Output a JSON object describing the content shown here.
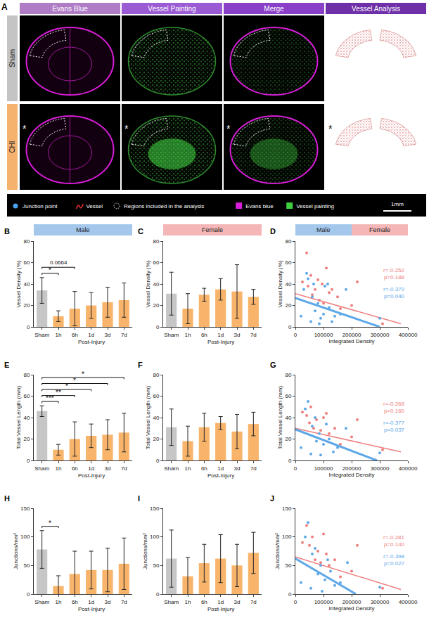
{
  "panel_a": {
    "label": "A",
    "columns": [
      {
        "text": "Evans Blue",
        "color": "#b07cc6"
      },
      {
        "text": "Vessel Painting",
        "color": "#9b5bd4"
      },
      {
        "text": "Merge",
        "color": "#8a3fc9"
      },
      {
        "text": "Vessel Analysis",
        "color": "#6f2fa8"
      }
    ],
    "rows": [
      {
        "label": "Sham",
        "color": "#c4c4c4"
      },
      {
        "label": "CHI",
        "color": "#f4b26e",
        "marker": "*"
      }
    ],
    "legend": [
      {
        "label": "Junction point",
        "marker": "dot",
        "color": "#4aa3f0"
      },
      {
        "label": "Vessel",
        "marker": "vessel",
        "color": "#e03030"
      },
      {
        "label": "Regions included in the analysis",
        "marker": "dotted_region",
        "color": "#ffffff"
      },
      {
        "label": "Evans blue",
        "marker": "square",
        "color": "#d81ed8"
      },
      {
        "label": "Vessel painting",
        "marker": "square",
        "color": "#3fcf3f"
      }
    ],
    "scale_bar": "1mm"
  },
  "chart_data": [
    {
      "panel": "B",
      "type": "bar",
      "header": {
        "text": "Male",
        "color": "#a4c8ec"
      },
      "y_title": "Vessel Density (%)",
      "categories": [
        "Sham",
        "1h",
        "6h",
        "1d",
        "3d",
        "7d"
      ],
      "group_label": "Post-Injury",
      "values": [
        34,
        10,
        17,
        20,
        23,
        25
      ],
      "errors": [
        12,
        5,
        16,
        12,
        14,
        16
      ],
      "colors": [
        "#c6c6c6",
        "#f7b46a",
        "#f7b46a",
        "#f7b46a",
        "#f7b46a",
        "#f7b46a"
      ],
      "ylim": [
        0,
        80
      ],
      "yticks": [
        0,
        20,
        40,
        60,
        80
      ],
      "grid": false,
      "comparisons": [
        {
          "from": "Sham",
          "to": "1h",
          "label": "*"
        },
        {
          "from": "Sham",
          "to": "6h",
          "label": "0.0664"
        }
      ]
    },
    {
      "panel": "C",
      "type": "bar",
      "header": {
        "text": "Female",
        "color": "#f4b6b6"
      },
      "y_title": "Vessel Density (%)",
      "categories": [
        "Sham",
        "1h",
        "6h",
        "1d",
        "3d",
        "7d"
      ],
      "group_label": "Post-Injury",
      "values": [
        31,
        17,
        30,
        35,
        33,
        28
      ],
      "errors": [
        20,
        14,
        6,
        10,
        25,
        7
      ],
      "colors": [
        "#c6c6c6",
        "#f7b46a",
        "#f7b46a",
        "#f7b46a",
        "#f7b46a",
        "#f7b46a"
      ],
      "ylim": [
        0,
        80
      ],
      "yticks": [
        0,
        20,
        40,
        60,
        80
      ],
      "grid": false,
      "comparisons": []
    },
    {
      "panel": "D",
      "type": "scatter",
      "header": [
        {
          "text": "Male",
          "color": "#a4c8ec"
        },
        {
          "text": "Female",
          "color": "#f4b6b6"
        }
      ],
      "x_title": "Integrated Density",
      "y_title": "Vessel Density (%)",
      "xlim": [
        0,
        400000
      ],
      "xticks": [
        0,
        100000,
        200000,
        300000,
        400000
      ],
      "ylim": [
        0,
        80
      ],
      "yticks": [
        0,
        20,
        40,
        60,
        80
      ],
      "grid": false,
      "series": [
        {
          "color": "#ee7f7f",
          "line_style": "solid",
          "stats": [
            "r=-0.252",
            "p=0.188"
          ],
          "x": [
            25000,
            40000,
            45000,
            55000,
            60000,
            70000,
            80000,
            85000,
            95000,
            100000,
            110000,
            120000,
            130000,
            150000,
            160000,
            200000,
            220000,
            310000
          ],
          "y": [
            42,
            69,
            38,
            48,
            30,
            35,
            44,
            25,
            40,
            22,
            55,
            32,
            35,
            28,
            17,
            20,
            42,
            3
          ],
          "fit": {
            "x": [
              0,
              375000
            ],
            "y": [
              31,
              3
            ]
          }
        },
        {
          "color": "#5fa8e8",
          "line_style": "bold",
          "stats": [
            "r=-0.370",
            "p=0.040"
          ],
          "x": [
            20000,
            30000,
            40000,
            45000,
            55000,
            60000,
            65000,
            70000,
            80000,
            85000,
            90000,
            100000,
            105000,
            115000,
            120000,
            130000,
            140000,
            160000,
            180000,
            300000
          ],
          "y": [
            10,
            35,
            50,
            45,
            5,
            28,
            40,
            15,
            22,
            3,
            8,
            12,
            38,
            40,
            18,
            5,
            10,
            12,
            35,
            8
          ],
          "fit": {
            "x": [
              0,
              300000
            ],
            "y": [
              27,
              0
            ]
          }
        }
      ]
    },
    {
      "panel": "E",
      "type": "bar",
      "y_title": "Total Vessel Length (mm)",
      "categories": [
        "Sham",
        "1h",
        "6h",
        "1d",
        "3d",
        "7d"
      ],
      "group_label": "Post-Injury",
      "values": [
        46,
        10,
        20,
        23,
        24,
        26
      ],
      "errors": [
        5,
        5,
        16,
        11,
        14,
        18
      ],
      "colors": [
        "#c6c6c6",
        "#f7b46a",
        "#f7b46a",
        "#f7b46a",
        "#f7b46a",
        "#f7b46a"
      ],
      "ylim": [
        0,
        80
      ],
      "yticks": [
        0,
        20,
        40,
        60,
        80
      ],
      "grid": false,
      "comparisons": [
        {
          "from": "Sham",
          "to": "1h",
          "label": "***"
        },
        {
          "from": "Sham",
          "to": "6h",
          "label": "**"
        },
        {
          "from": "Sham",
          "to": "1d",
          "label": "*"
        },
        {
          "from": "Sham",
          "to": "3d",
          "label": "*"
        },
        {
          "from": "Sham",
          "to": "7d",
          "label": "*"
        }
      ]
    },
    {
      "panel": "F",
      "type": "bar",
      "y_title": "Total Vessel Length (mm)",
      "categories": [
        "Sham",
        "1h",
        "6h",
        "1d",
        "3d",
        "7d"
      ],
      "group_label": "Post-Injury",
      "values": [
        31,
        18,
        31,
        35,
        27,
        34
      ],
      "errors": [
        17,
        14,
        13,
        6,
        16,
        11
      ],
      "colors": [
        "#c6c6c6",
        "#f7b46a",
        "#f7b46a",
        "#f7b46a",
        "#f7b46a",
        "#f7b46a"
      ],
      "ylim": [
        0,
        80
      ],
      "yticks": [
        0,
        20,
        40,
        60,
        80
      ],
      "grid": false,
      "comparisons": []
    },
    {
      "panel": "G",
      "type": "scatter",
      "x_title": "Integrated Density",
      "y_title": "Total Vessel Length (mm)",
      "xlim": [
        0,
        400000
      ],
      "xticks": [
        0,
        100000,
        200000,
        300000,
        400000
      ],
      "ylim": [
        0,
        80
      ],
      "yticks": [
        0,
        20,
        40,
        60,
        80
      ],
      "grid": false,
      "series": [
        {
          "color": "#ee7f7f",
          "line_style": "solid",
          "stats": [
            "r=-0.268",
            "p=0.160"
          ],
          "x": [
            25000,
            40000,
            50000,
            55000,
            65000,
            75000,
            90000,
            100000,
            110000,
            120000,
            140000,
            160000,
            200000,
            220000,
            310000
          ],
          "y": [
            45,
            42,
            35,
            50,
            30,
            38,
            28,
            40,
            44,
            25,
            30,
            15,
            22,
            38,
            10
          ],
          "fit": {
            "x": [
              0,
              375000
            ],
            "y": [
              30,
              8
            ]
          }
        },
        {
          "color": "#5fa8e8",
          "line_style": "bold",
          "stats": [
            "r=-0.377",
            "p=0.037"
          ],
          "x": [
            20000,
            35000,
            45000,
            55000,
            60000,
            70000,
            75000,
            85000,
            90000,
            100000,
            110000,
            120000,
            135000,
            150000,
            180000,
            300000
          ],
          "y": [
            12,
            48,
            55,
            6,
            32,
            40,
            18,
            25,
            5,
            15,
            34,
            20,
            8,
            12,
            30,
            7
          ],
          "fit": {
            "x": [
              0,
              290000
            ],
            "y": [
              29,
              0
            ]
          }
        }
      ]
    },
    {
      "panel": "H",
      "type": "bar",
      "y_title": "Junctions/mm²",
      "categories": [
        "Sham",
        "1h",
        "6h",
        "1d",
        "3d",
        "7d"
      ],
      "group_label": "Post-Injury",
      "values": [
        78,
        14,
        35,
        42,
        42,
        53
      ],
      "errors": [
        33,
        18,
        40,
        33,
        38,
        45
      ],
      "colors": [
        "#c6c6c6",
        "#f7b46a",
        "#f7b46a",
        "#f7b46a",
        "#f7b46a",
        "#f7b46a"
      ],
      "ylim": [
        0,
        150
      ],
      "yticks": [
        0,
        50,
        100,
        150
      ],
      "grid": false,
      "comparisons": [
        {
          "from": "Sham",
          "to": "1h",
          "label": "*"
        }
      ]
    },
    {
      "panel": "I",
      "type": "bar",
      "y_title": "Junctions/mm²",
      "categories": [
        "Sham",
        "1h",
        "6h",
        "1d",
        "3d",
        "7d"
      ],
      "group_label": "Post-Injury",
      "values": [
        62,
        31,
        54,
        62,
        50,
        72
      ],
      "errors": [
        50,
        33,
        33,
        42,
        37,
        36
      ],
      "colors": [
        "#c6c6c6",
        "#f7b46a",
        "#f7b46a",
        "#f7b46a",
        "#f7b46a",
        "#f7b46a"
      ],
      "ylim": [
        0,
        150
      ],
      "yticks": [
        0,
        50,
        100,
        150
      ],
      "grid": false,
      "comparisons": []
    },
    {
      "panel": "J",
      "type": "scatter",
      "x_title": "Integrated Density",
      "y_title": "Junctions/mm²",
      "xlim": [
        0,
        400000
      ],
      "xticks": [
        0,
        100000,
        200000,
        300000,
        400000
      ],
      "ylim": [
        0,
        150
      ],
      "yticks": [
        0,
        50,
        100,
        150
      ],
      "grid": false,
      "series": [
        {
          "color": "#ee7f7f",
          "line_style": "solid",
          "stats": [
            "r=-0.281",
            "p=0.140"
          ],
          "x": [
            25000,
            40000,
            50000,
            60000,
            70000,
            80000,
            90000,
            100000,
            110000,
            120000,
            140000,
            160000,
            200000,
            220000,
            310000
          ],
          "y": [
            90,
            120,
            85,
            100,
            60,
            75,
            55,
            105,
            70,
            50,
            60,
            30,
            40,
            85,
            10
          ],
          "fit": {
            "x": [
              0,
              375000
            ],
            "y": [
              65,
              8
            ]
          }
        },
        {
          "color": "#5fa8e8",
          "line_style": "bold",
          "stats": [
            "r=-0.398",
            "p=0.027"
          ],
          "x": [
            20000,
            35000,
            45000,
            55000,
            60000,
            70000,
            80000,
            90000,
            95000,
            105000,
            115000,
            125000,
            140000,
            160000,
            185000,
            300000
          ],
          "y": [
            20,
            100,
            125,
            10,
            70,
            80,
            35,
            50,
            5,
            25,
            60,
            40,
            15,
            20,
            55,
            12
          ],
          "fit": {
            "x": [
              0,
              215000
            ],
            "y": [
              62,
              0
            ]
          }
        }
      ]
    }
  ]
}
